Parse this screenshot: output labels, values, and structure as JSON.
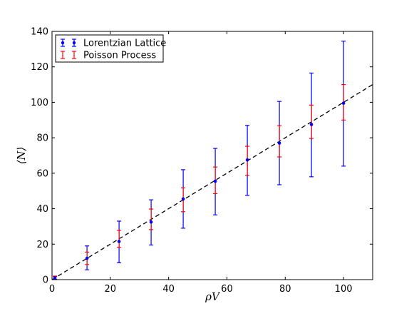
{
  "chart_data": {
    "type": "scatter",
    "xlabel": "ρV",
    "ylabel": "⟨N⟩",
    "xlim": [
      0,
      110
    ],
    "ylim": [
      0,
      140
    ],
    "xticks": [
      0,
      20,
      40,
      60,
      80,
      100
    ],
    "yticks": [
      0,
      20,
      40,
      60,
      80,
      100,
      120,
      140
    ],
    "grid": false,
    "legend_position": "top-left",
    "series": [
      {
        "name": "Lorentzian Lattice",
        "color": "#0000ff",
        "marker": "dot",
        "x": [
          1,
          12,
          23,
          34,
          45,
          56,
          67,
          78,
          89,
          100
        ],
        "y": [
          1,
          12,
          21.5,
          32.5,
          45.5,
          55.5,
          67.5,
          77,
          87.5,
          99.5
        ],
        "err_low": [
          0.8,
          6.5,
          12,
          13,
          16.5,
          19,
          20,
          23.5,
          29.5,
          35.5
        ],
        "err_high": [
          0.8,
          7,
          11.5,
          12.5,
          16.5,
          18.5,
          19.5,
          23.5,
          29,
          35
        ]
      },
      {
        "name": "Poisson Process",
        "color": "#ff0000",
        "marker": "none",
        "x": [
          1,
          12,
          23,
          34,
          45,
          56,
          67,
          78,
          89,
          100
        ],
        "y": [
          1,
          12,
          23,
          34,
          45,
          56,
          67,
          78,
          89,
          100
        ],
        "err_low": [
          1,
          3.5,
          4.8,
          5.8,
          6.7,
          7.5,
          8.2,
          8.8,
          9.4,
          10
        ],
        "err_high": [
          1,
          3.5,
          4.8,
          5.8,
          6.7,
          7.5,
          8.2,
          8.8,
          9.4,
          10
        ]
      }
    ],
    "reference_line": {
      "style": "dashed",
      "color": "#000000",
      "x": [
        0,
        110
      ],
      "y": [
        0,
        110
      ]
    }
  }
}
